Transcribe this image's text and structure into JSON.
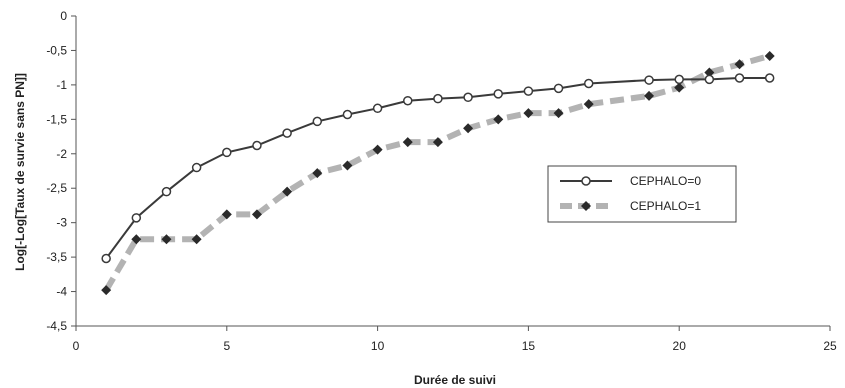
{
  "chart_data": {
    "type": "line",
    "xlabel": "Durée de suivi",
    "ylabel": "Log[-Log[Taux de survie sans PN]]",
    "xlim": [
      0,
      25
    ],
    "ylim": [
      -4.5,
      0
    ],
    "x_ticks": [
      "0",
      "5",
      "10",
      "15",
      "20",
      "25"
    ],
    "y_ticks": [
      "0",
      "-0,5",
      "-1",
      "-1,5",
      "-2",
      "-2,5",
      "-3",
      "-3,5",
      "-4",
      "-4,5"
    ],
    "grid": false,
    "legend_position": "right",
    "series": [
      {
        "name": "CEPHALO=0",
        "style": "solid line, open circle markers",
        "color": "#3a3a3a",
        "points": [
          [
            1,
            -3.52
          ],
          [
            2,
            -2.93
          ],
          [
            3,
            -2.55
          ],
          [
            4,
            -2.2
          ],
          [
            5,
            -1.98
          ],
          [
            6,
            -1.88
          ],
          [
            7,
            -1.7
          ],
          [
            8,
            -1.53
          ],
          [
            9,
            -1.43
          ],
          [
            10,
            -1.34
          ],
          [
            11,
            -1.23
          ],
          [
            12,
            -1.2
          ],
          [
            13,
            -1.18
          ],
          [
            14,
            -1.13
          ],
          [
            15,
            -1.09
          ],
          [
            16,
            -1.05
          ],
          [
            17,
            -0.98
          ],
          [
            19,
            -0.93
          ],
          [
            20,
            -0.92
          ],
          [
            21,
            -0.92
          ],
          [
            22,
            -0.9
          ],
          [
            23,
            -0.9
          ]
        ]
      },
      {
        "name": "CEPHALO=1",
        "style": "dashed thick line, filled diamond markers",
        "color": "#b3b3b3",
        "marker_color": "#2a2a2a",
        "points": [
          [
            1,
            -3.98
          ],
          [
            2,
            -3.24
          ],
          [
            3,
            -3.24
          ],
          [
            4,
            -3.24
          ],
          [
            5,
            -2.88
          ],
          [
            6,
            -2.88
          ],
          [
            7,
            -2.55
          ],
          [
            8,
            -2.28
          ],
          [
            9,
            -2.17
          ],
          [
            10,
            -1.94
          ],
          [
            11,
            -1.83
          ],
          [
            12,
            -1.83
          ],
          [
            13,
            -1.63
          ],
          [
            14,
            -1.5
          ],
          [
            15,
            -1.41
          ],
          [
            16,
            -1.41
          ],
          [
            17,
            -1.28
          ],
          [
            19,
            -1.16
          ],
          [
            20,
            -1.04
          ],
          [
            21,
            -0.82
          ],
          [
            22,
            -0.7
          ],
          [
            23,
            -0.58
          ]
        ]
      }
    ]
  }
}
